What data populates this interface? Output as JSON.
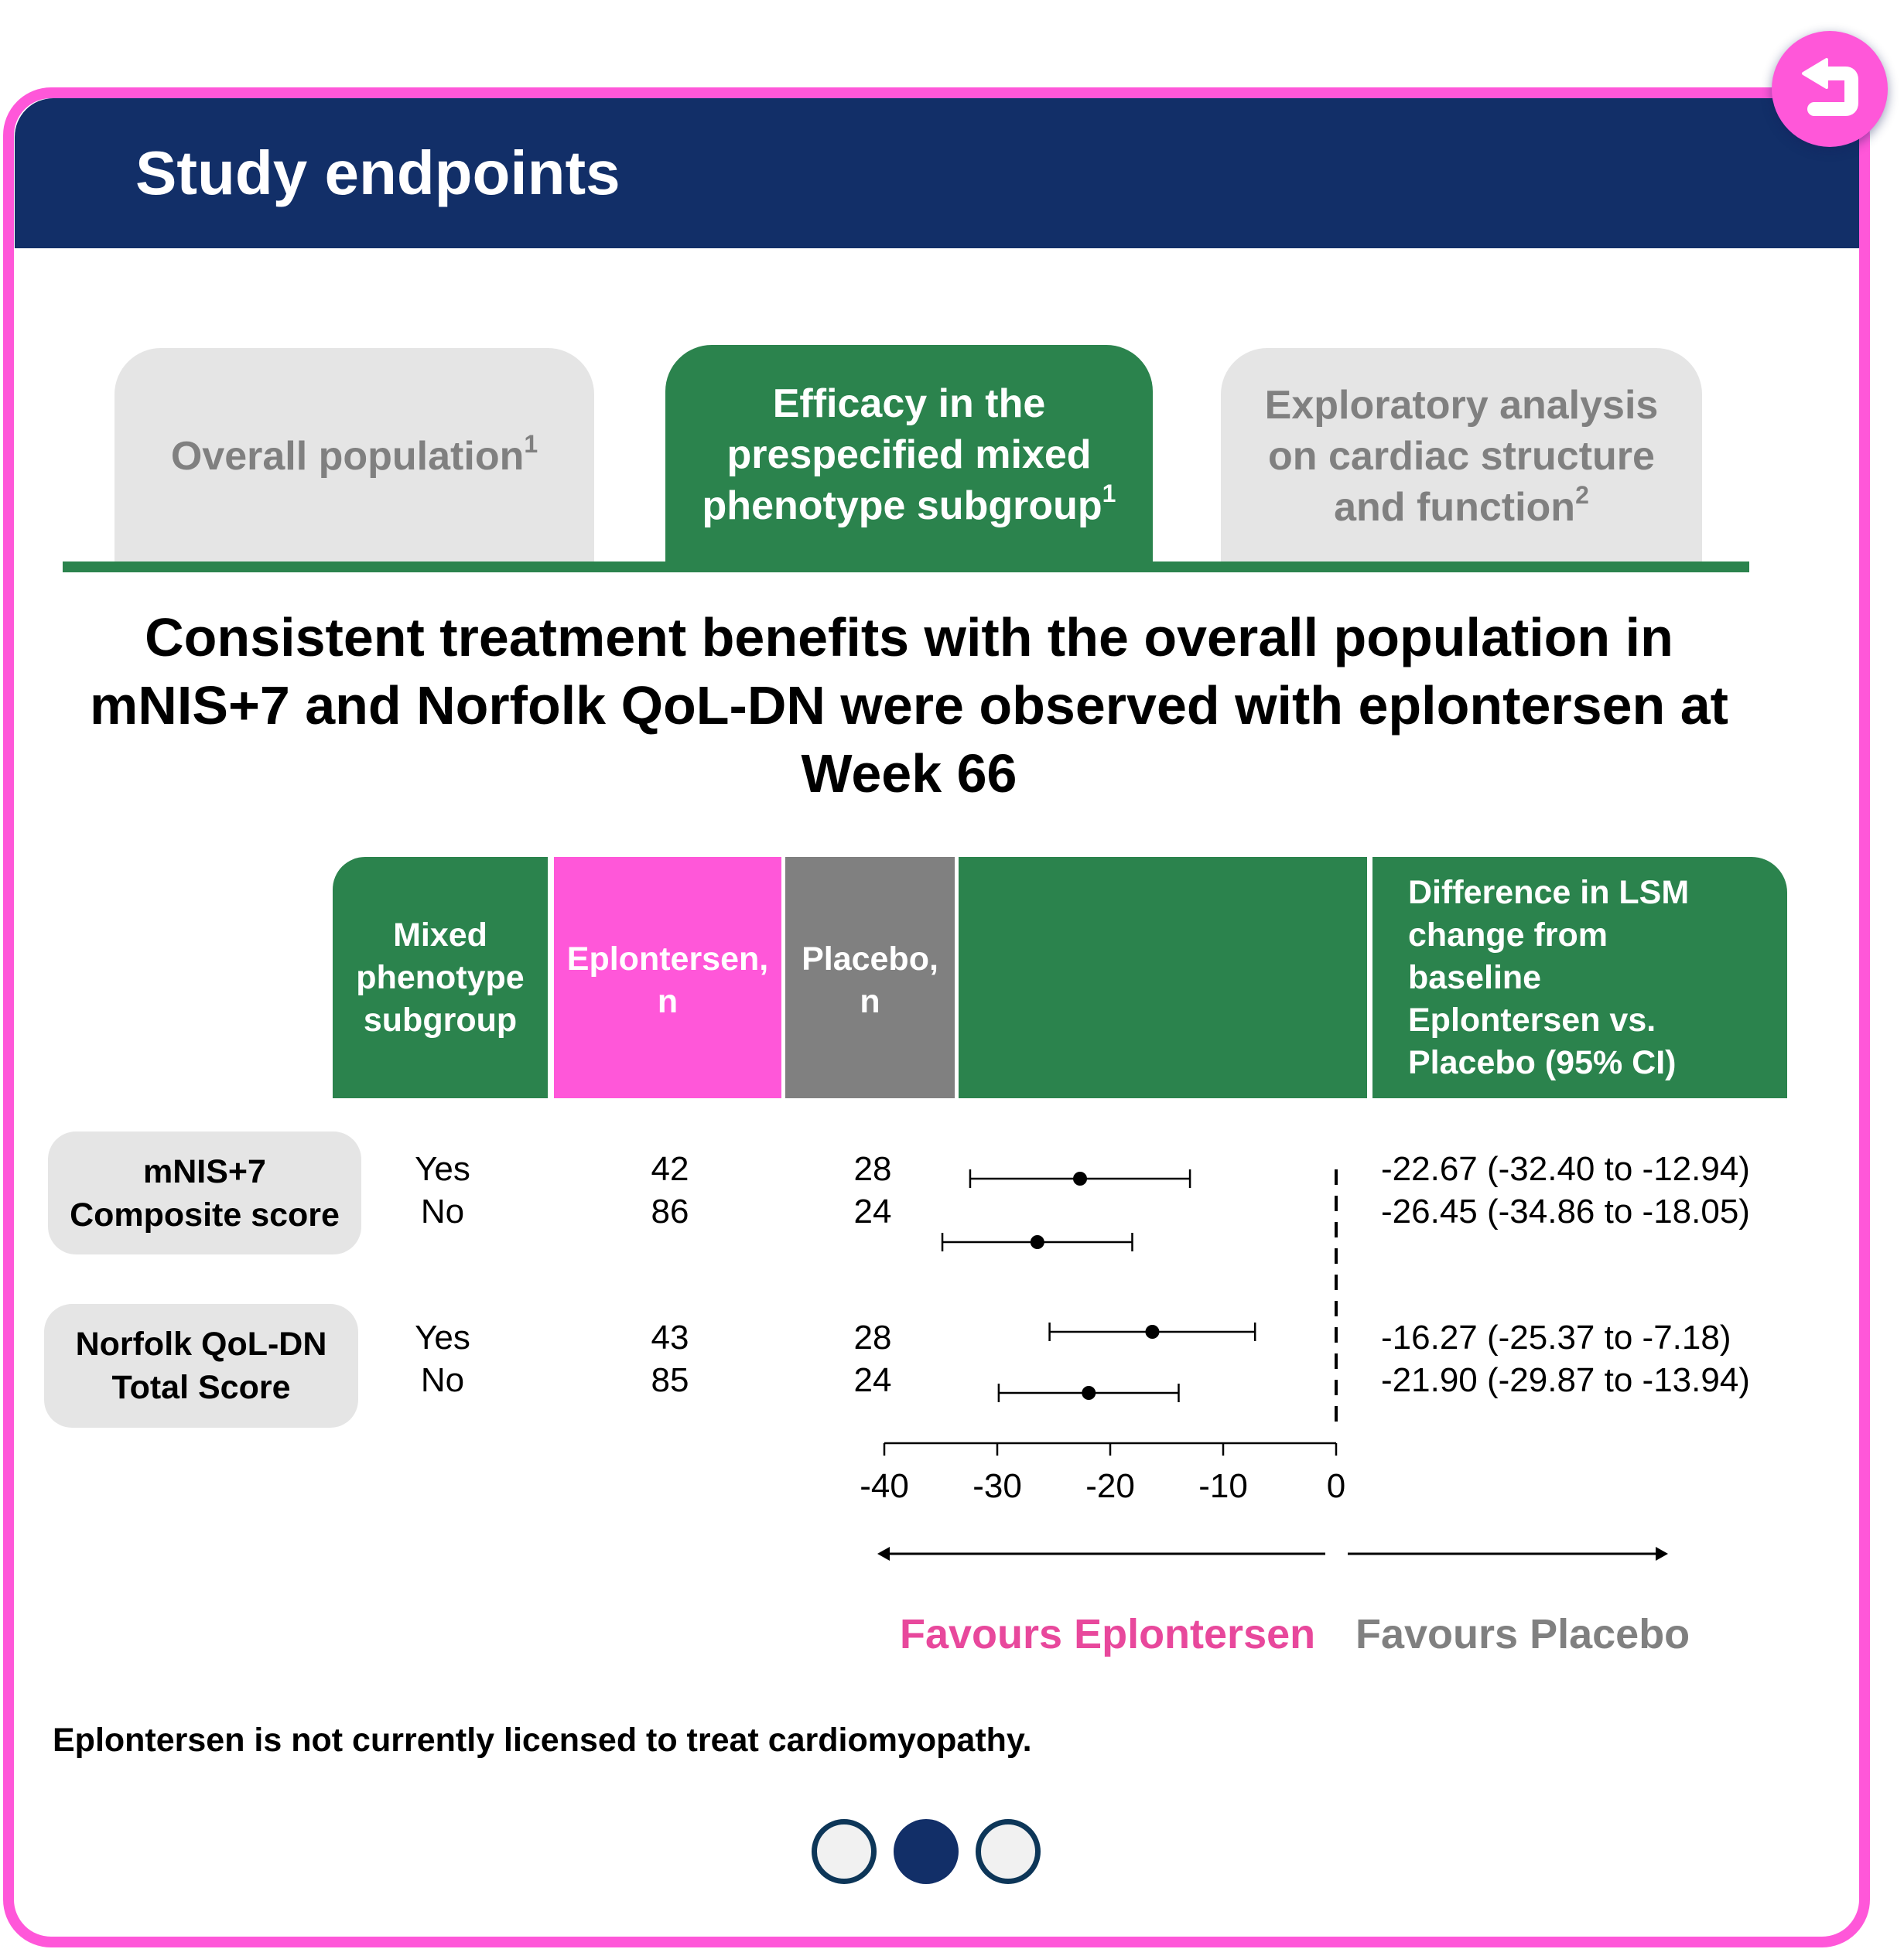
{
  "header": {
    "title": "Study endpoints"
  },
  "back_button": {
    "icon": "return-arrow-icon",
    "label": "Back"
  },
  "tabs": [
    {
      "label": "Overall population",
      "sup": "1",
      "active": false
    },
    {
      "label": "Efficacy in the prespecified mixed phenotype subgroup",
      "sup": "1",
      "active": true
    },
    {
      "label": "Exploratory analysis on cardiac structure and function",
      "sup": "2",
      "active": false
    }
  ],
  "headline": "Consistent treatment benefits with the overall population in mNIS+7 and Norfolk QoL-DN were observed with eplontersen at Week 66",
  "table": {
    "headers": {
      "subgroup": "Mixed phenotype subgroup",
      "eplontersen_n": "Eplontersen, n",
      "placebo_n": "Placebo, n",
      "plot": "",
      "difference": "Difference in LSM change from baseline Eplontersen vs. Placebo (95% CI)"
    },
    "groups": [
      {
        "label_line1": "mNIS+7",
        "label_line2": "Composite score",
        "rows": [
          {
            "subgroup": "Yes",
            "eplontersen_n": "42",
            "placebo_n": "28",
            "ci_text": "-22.67 (-32.40 to -12.94)"
          },
          {
            "subgroup": "No",
            "eplontersen_n": "86",
            "placebo_n": "24",
            "ci_text": "-26.45 (-34.86 to -18.05)"
          }
        ]
      },
      {
        "label_line1": "Norfolk QoL-DN",
        "label_line2": "Total Score",
        "rows": [
          {
            "subgroup": "Yes",
            "eplontersen_n": "43",
            "placebo_n": "28",
            "ci_text": "-16.27 (-25.37 to -7.18)"
          },
          {
            "subgroup": "No",
            "eplontersen_n": "85",
            "placebo_n": "24",
            "ci_text": "-21.90 (-29.87 to -13.94)"
          }
        ]
      }
    ]
  },
  "chart_data": {
    "type": "forest",
    "title": "Difference in LSM change from baseline, Eplontersen vs. Placebo (95% CI)",
    "xlim": [
      -40,
      0
    ],
    "xticks": [
      -40,
      -30,
      -20,
      -10,
      0
    ],
    "xtick_labels": [
      "-40",
      "-30",
      "-20",
      "-10",
      "0"
    ],
    "reference_line": 0,
    "grid": false,
    "series": [
      {
        "name": "mNIS+7 Composite score – Yes",
        "estimate": -22.67,
        "lower": -32.4,
        "upper": -12.94
      },
      {
        "name": "mNIS+7 Composite score – No",
        "estimate": -26.45,
        "lower": -34.86,
        "upper": -18.05
      },
      {
        "name": "Norfolk QoL-DN Total Score – Yes",
        "estimate": -16.27,
        "lower": -25.37,
        "upper": -7.18
      },
      {
        "name": "Norfolk QoL-DN Total Score – No",
        "estimate": -21.9,
        "lower": -29.87,
        "upper": -13.94
      }
    ],
    "direction_labels": {
      "left": "Favours Eplontersen",
      "right": "Favours Placebo"
    }
  },
  "footnote": "Eplontersen is not currently licensed to treat cardiomyopathy.",
  "pagination": {
    "pages": 3,
    "current": 2
  },
  "colors": {
    "brand_pink": "#ff57d9",
    "header_navy": "#122f68",
    "green": "#2b834d",
    "grey": "#808080",
    "light_grey": "#e5e5e5",
    "favours_eplontersen": "#e8489c",
    "favours_placebo": "#808080"
  }
}
